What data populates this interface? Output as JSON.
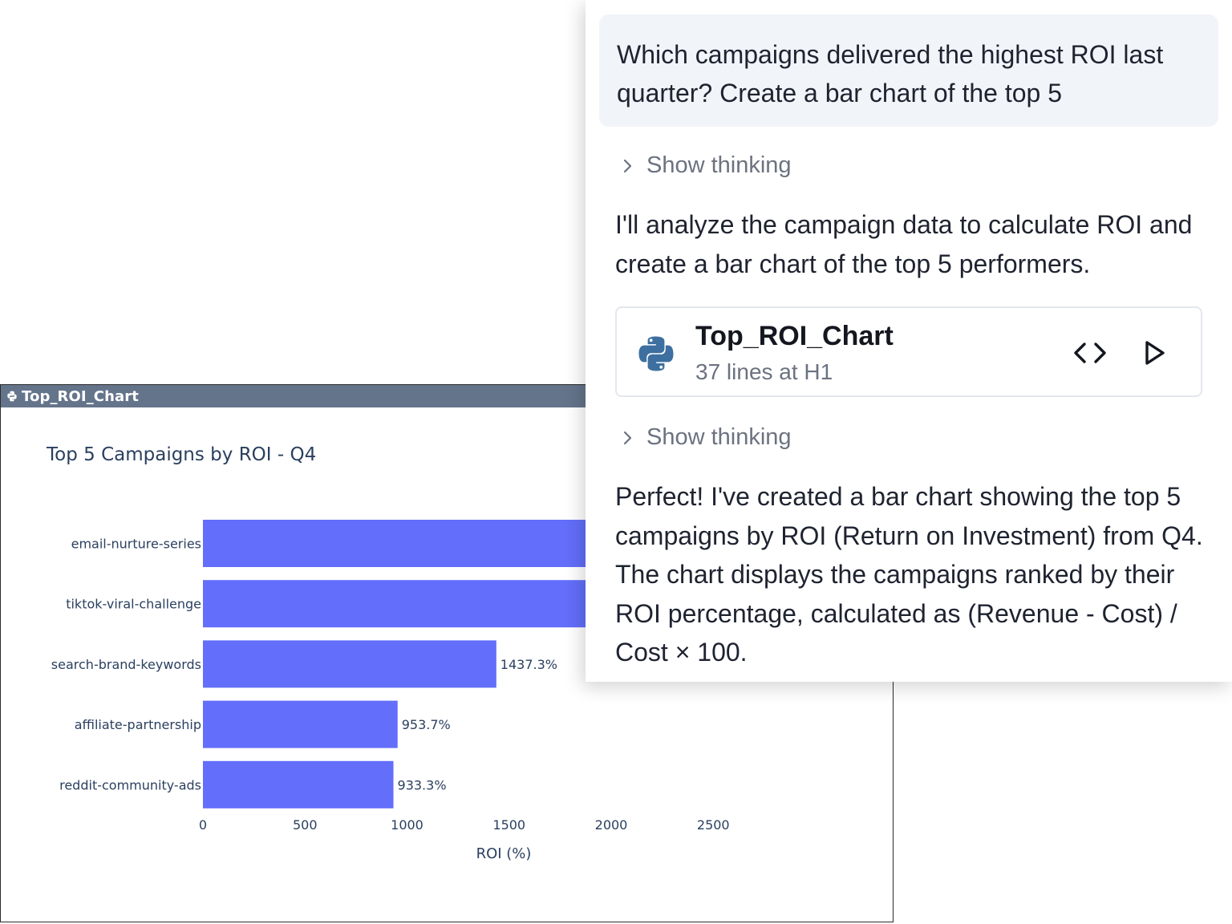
{
  "chart_window": {
    "title": "Top_ROI_Chart"
  },
  "chart_data": {
    "type": "bar",
    "orientation": "horizontal",
    "title": "Top 5 Campaigns by ROI - Q4",
    "xlabel": "ROI (%)",
    "ylabel": "",
    "categories": [
      "email-nurture-series",
      "tiktok-viral-challenge",
      "search-brand-keywords",
      "affiliate-partnership",
      "reddit-community-ads"
    ],
    "values": [
      2900,
      2900,
      1437.3,
      953.7,
      933.3
    ],
    "value_labels": [
      "",
      "",
      "1437.3%",
      "953.7%",
      "933.3%"
    ],
    "xticks": [
      "0",
      "500",
      "1000",
      "1500",
      "2000",
      "2500"
    ],
    "xtick_values": [
      0,
      500,
      1000,
      1500,
      2000,
      2500
    ],
    "bar_color": "#636efa",
    "title_color": "#2a3f5f",
    "text_color": "#2a3f5f"
  },
  "chat": {
    "user_message": "Which campaigns delivered the highest ROI last quarter? Create a bar chart of the top 5",
    "thinking_label_1": "Show thinking",
    "assistant_message_1": "I'll analyze the campaign data to calculate ROI and create a bar chart of the top 5 performers.",
    "artifact": {
      "title": "Top_ROI_Chart",
      "subtitle": "37 lines at H1",
      "icon": "python-icon",
      "code_icon": "code-brackets-icon",
      "run_icon": "play-icon"
    },
    "thinking_label_2": "Show thinking",
    "assistant_message_2": "Perfect! I've created a bar chart showing the top 5 campaigns by ROI (Return on Investment) from Q4. The chart displays the campaigns ranked by their ROI percentage, calculated as (Revenue - Cost) / Cost × 100."
  },
  "colors": {
    "titlebar": "#64748b",
    "user_bubble": "#f1f4f8",
    "muted_text": "#6b7280",
    "python_blue": "#3d6fa0"
  }
}
